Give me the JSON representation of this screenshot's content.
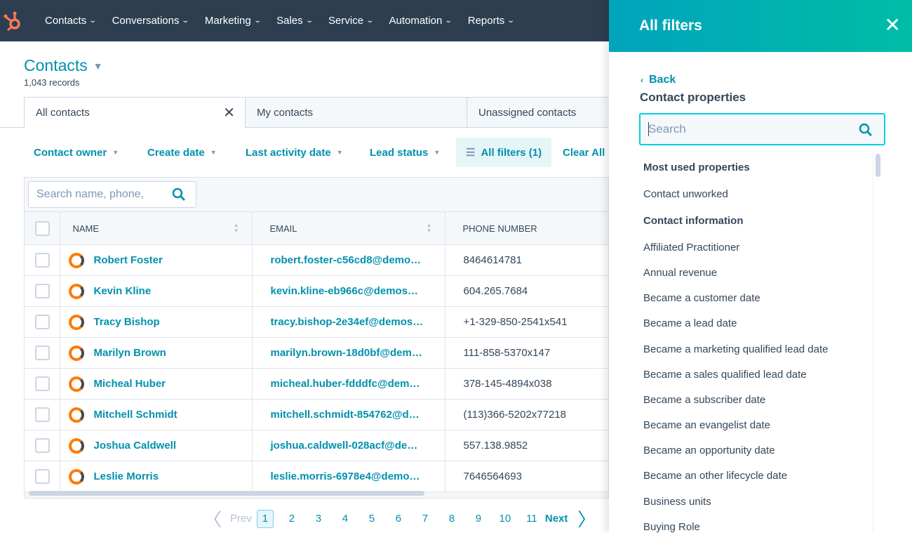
{
  "nav": {
    "items": [
      "Contacts",
      "Conversations",
      "Marketing",
      "Sales",
      "Service",
      "Automation",
      "Reports"
    ]
  },
  "page": {
    "title": "Contacts",
    "records": "1,043 records"
  },
  "tabs": [
    "All contacts",
    "My contacts",
    "Unassigned contacts"
  ],
  "filters": {
    "contact_owner": "Contact owner",
    "create_date": "Create date",
    "last_activity": "Last activity date",
    "lead_status": "Lead status",
    "all_filters": "All filters (1)",
    "clear_all": "Clear All"
  },
  "search": {
    "placeholder": "Search name, phone,"
  },
  "table": {
    "headers": [
      "NAME",
      "EMAIL",
      "PHONE NUMBER"
    ],
    "rows": [
      {
        "name": "Robert Foster",
        "email": "robert.foster-c56cd8@demo…",
        "phone": "8464614781"
      },
      {
        "name": "Kevin Kline",
        "email": "kevin.kline-eb966c@demos…",
        "phone": "604.265.7684"
      },
      {
        "name": "Tracy Bishop",
        "email": "tracy.bishop-2e34ef@demos…",
        "phone": "+1-329-850-2541x541"
      },
      {
        "name": "Marilyn Brown",
        "email": "marilyn.brown-18d0bf@dem…",
        "phone": "111-858-5370x147"
      },
      {
        "name": "Micheal Huber",
        "email": "micheal.huber-fdddfc@dem…",
        "phone": "378-145-4894x038"
      },
      {
        "name": "Mitchell Schmidt",
        "email": "mitchell.schmidt-854762@d…",
        "phone": "(113)366-5202x77218"
      },
      {
        "name": "Joshua Caldwell",
        "email": "joshua.caldwell-028acf@de…",
        "phone": "557.138.9852"
      },
      {
        "name": "Leslie Morris",
        "email": "leslie.morris-6978e4@demo…",
        "phone": "7646564693"
      }
    ]
  },
  "pager": {
    "prev": "Prev",
    "pages": [
      "1",
      "2",
      "3",
      "4",
      "5",
      "6",
      "7",
      "8",
      "9",
      "10",
      "11"
    ],
    "current": "1",
    "next": "Next"
  },
  "panel": {
    "title": "All filters",
    "back": "Back",
    "subtitle": "Contact properties",
    "search_placeholder": "Search",
    "items": [
      {
        "label": "Most used properties",
        "heading": true
      },
      {
        "label": "Contact unworked"
      },
      {
        "label": "Contact information",
        "heading": true
      },
      {
        "label": "Affiliated Practitioner"
      },
      {
        "label": "Annual revenue"
      },
      {
        "label": "Became a customer date"
      },
      {
        "label": "Became a lead date"
      },
      {
        "label": "Became a marketing qualified lead date"
      },
      {
        "label": "Became a sales qualified lead date"
      },
      {
        "label": "Became a subscriber date"
      },
      {
        "label": "Became an evangelist date"
      },
      {
        "label": "Became an opportunity date"
      },
      {
        "label": "Became an other lifecycle date"
      },
      {
        "label": "Business units"
      },
      {
        "label": "Buying Role"
      }
    ]
  },
  "colors": {
    "nav": "#2d3e50",
    "accent": "#0091ae",
    "brand": "#ff7a59",
    "panel_header": "#00a4bd"
  }
}
